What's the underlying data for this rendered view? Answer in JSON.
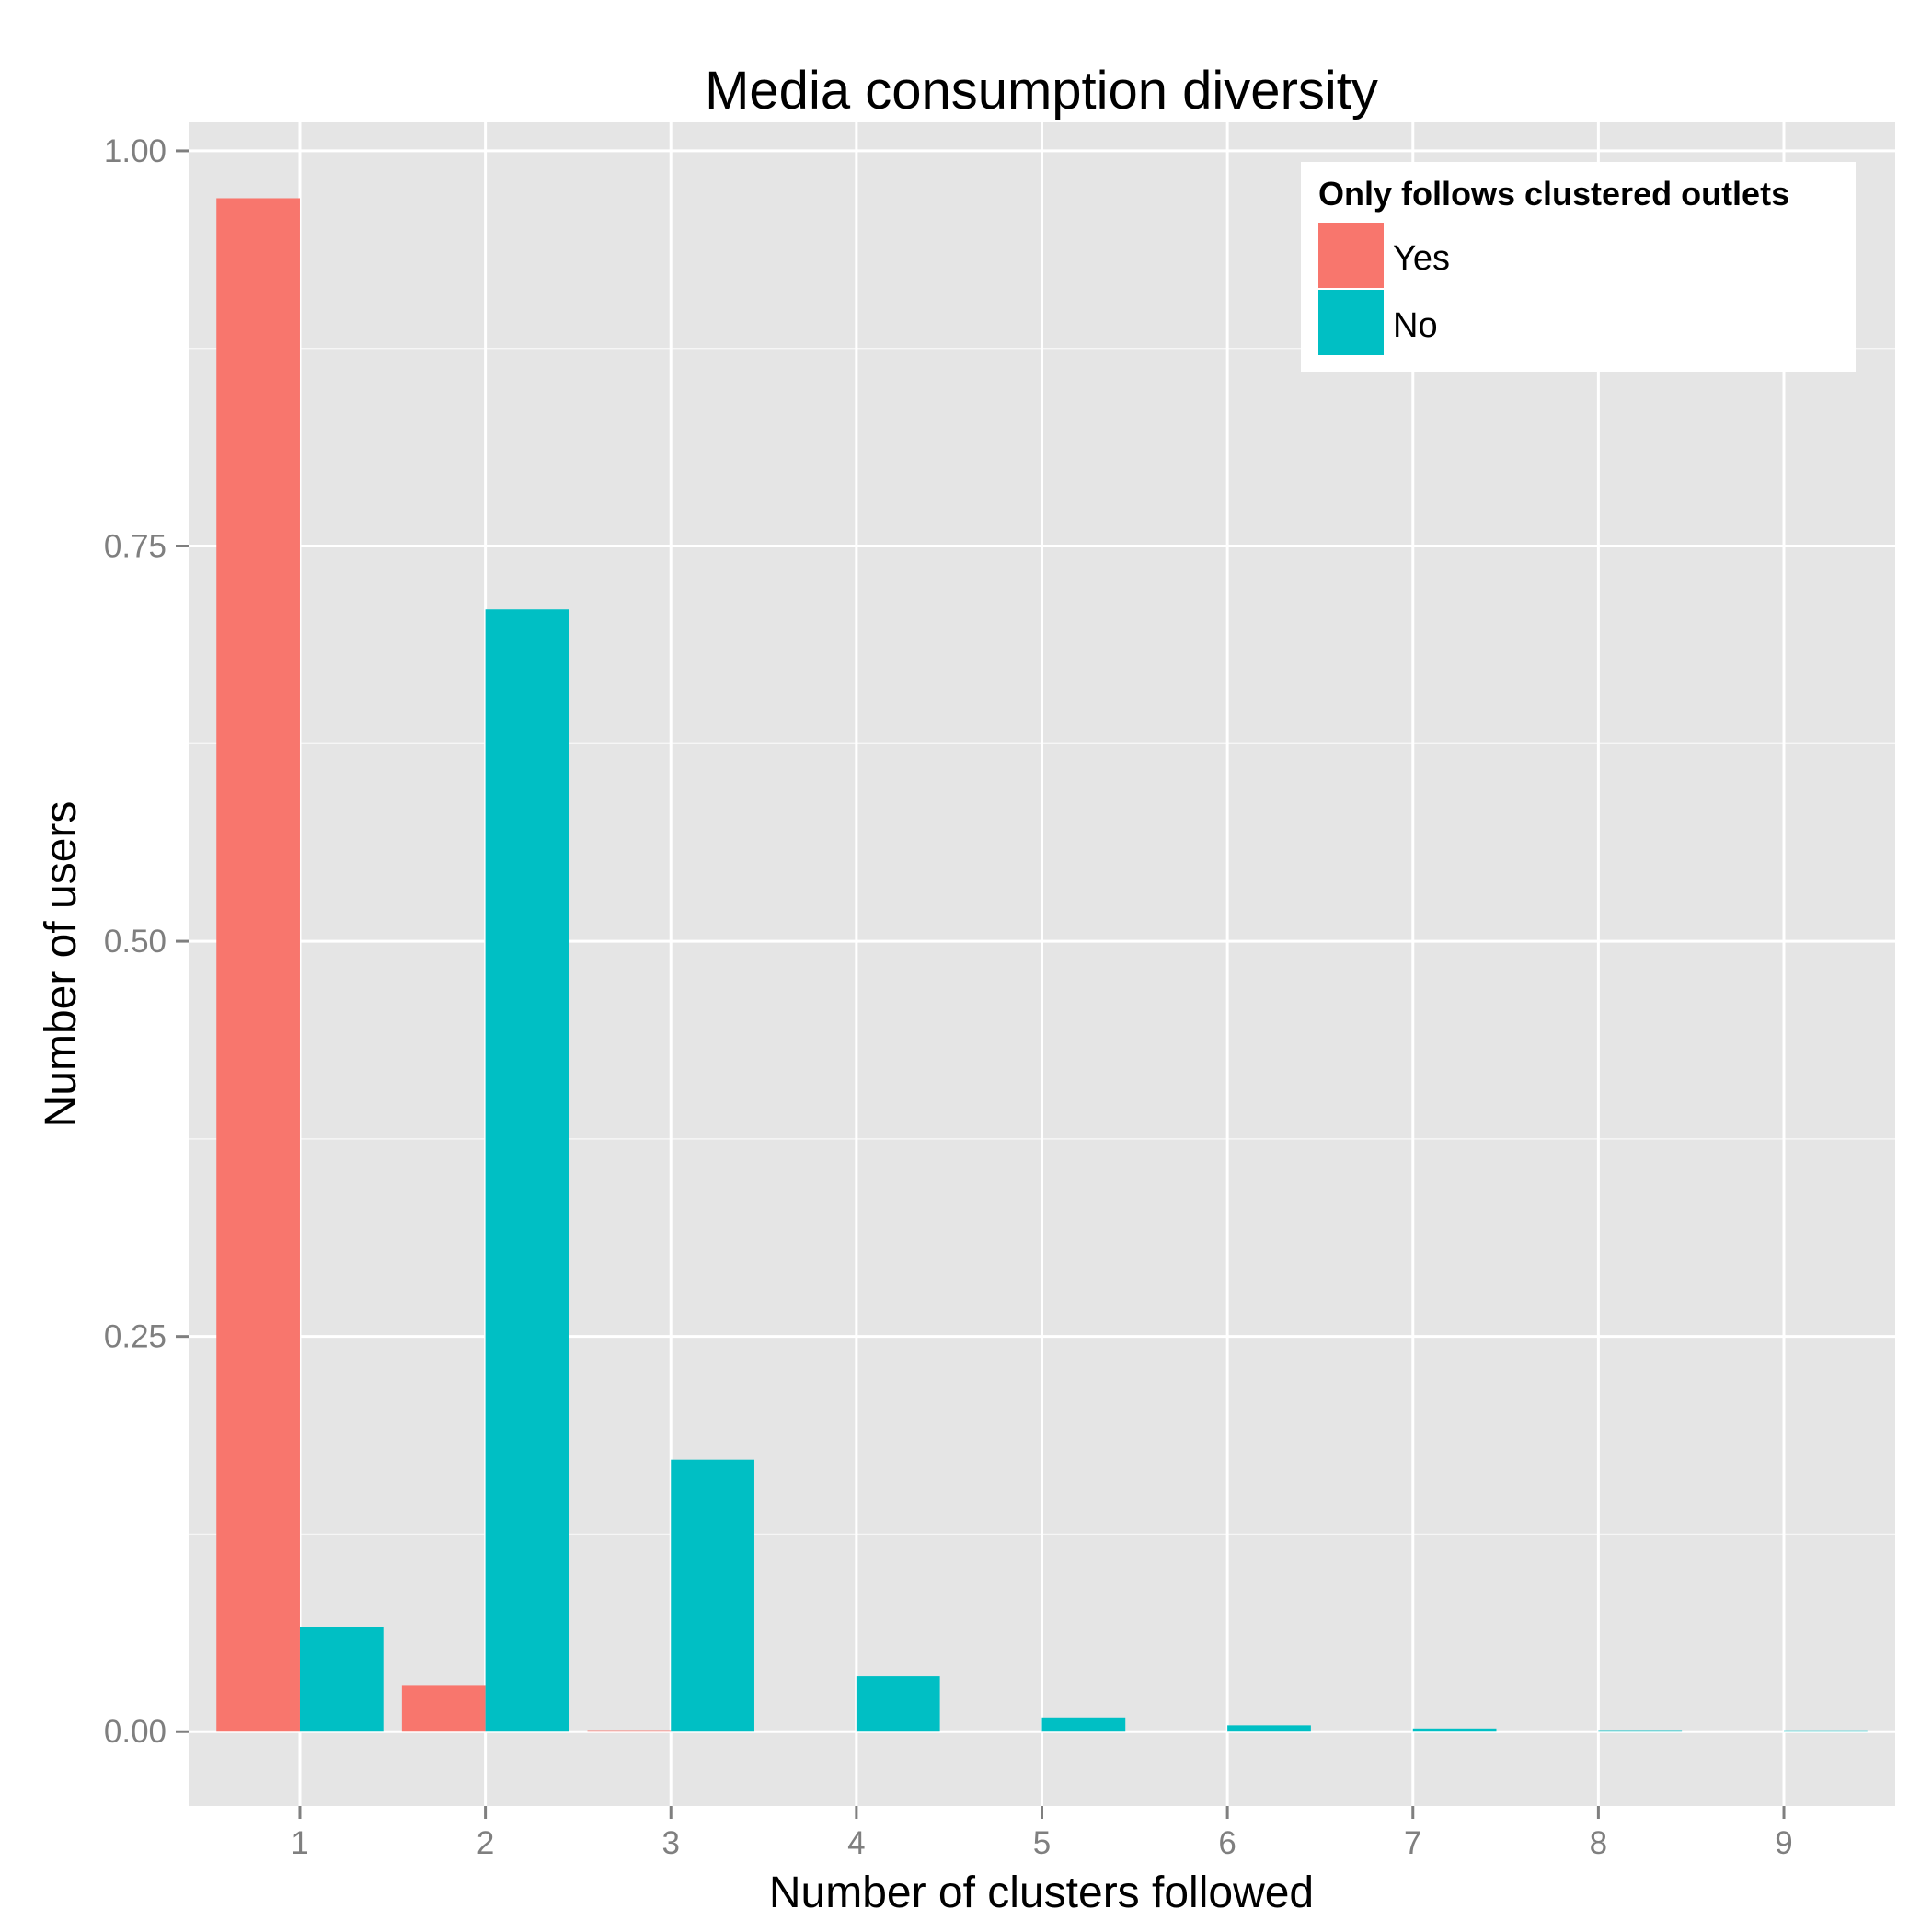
{
  "chart_data": {
    "type": "bar",
    "title": "Media consumption diversity",
    "xlabel": "Number of clusters followed",
    "ylabel": "Number of users",
    "categories": [
      "1",
      "2",
      "3",
      "4",
      "5",
      "6",
      "7",
      "8",
      "9"
    ],
    "series": [
      {
        "name": "Yes",
        "color": "#F8766D",
        "values": [
          0.97,
          0.029,
          0.001,
          0,
          0,
          0,
          0,
          0,
          0
        ]
      },
      {
        "name": "No",
        "color": "#00BFC4",
        "values": [
          0.066,
          0.71,
          0.172,
          0.035,
          0.009,
          0.004,
          0.002,
          0.001,
          0.0005
        ]
      }
    ],
    "ylim": [
      -0.047,
      1.018
    ],
    "yticks": [
      0,
      0.25,
      0.5,
      0.75,
      1
    ],
    "ytick_labels": [
      "0.00",
      "0.25",
      "0.50",
      "0.75",
      "1.00"
    ],
    "grid": true,
    "legend": {
      "title": "Only follows clustered outlets",
      "position": "top-right"
    },
    "colors": {
      "panel": "#E5E5E5",
      "grid": "#FFFFFF",
      "tick": "#7F7F7F"
    }
  }
}
